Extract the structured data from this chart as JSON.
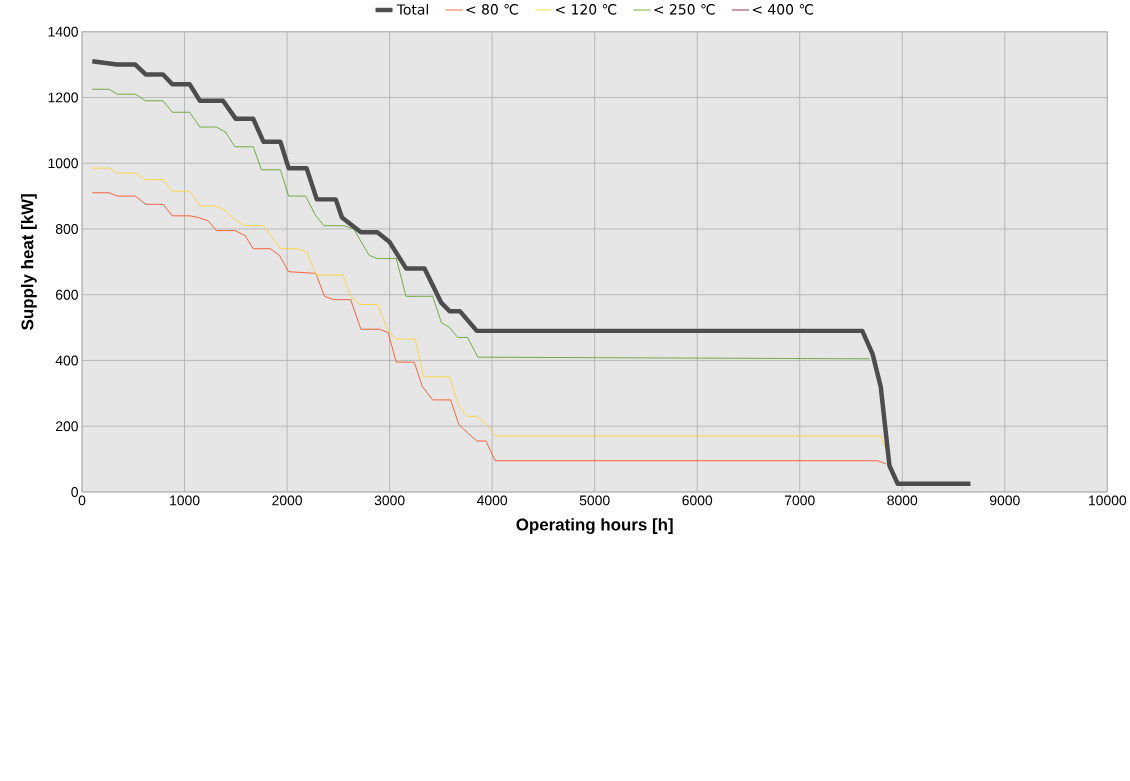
{
  "chart_data": {
    "type": "line",
    "xlabel": "Operating hours [h]",
    "ylabel": "Supply heat [kW]",
    "xlim": [
      0,
      10000
    ],
    "xticks": [
      0,
      1000,
      2000,
      3000,
      4000,
      5000,
      6000,
      7000,
      8000,
      9000,
      10000
    ],
    "ylim": [
      0,
      1400
    ],
    "yticks": [
      0,
      200,
      400,
      600,
      800,
      1000,
      1200,
      1400
    ],
    "grid": true,
    "legend": "top",
    "marker": "none",
    "line_style": "solid",
    "series": [
      {
        "name": "Total",
        "color": "#4d4d4d",
        "x": [
          100,
          340,
          520,
          620,
          790,
          880,
          1050,
          1150,
          1375,
          1500,
          1670,
          1770,
          1935,
          2015,
          2190,
          2290,
          2475,
          2535,
          2720,
          2880,
          3000,
          3160,
          3340,
          3505,
          3585,
          3685,
          3850,
          7610,
          7710,
          7790,
          7875,
          7955,
          8665
        ],
        "values": [
          1310,
          1300,
          1300,
          1270,
          1270,
          1240,
          1240,
          1190,
          1190,
          1135,
          1135,
          1065,
          1065,
          985,
          985,
          890,
          890,
          835,
          790,
          790,
          760,
          680,
          680,
          575,
          550,
          550,
          490,
          490,
          420,
          320,
          80,
          25,
          25
        ]
      },
      {
        "name": "<  80 ℃",
        "color": "#ff420e",
        "x": [
          100,
          265,
          345,
          520,
          620,
          790,
          880,
          1050,
          1130,
          1230,
          1310,
          1490,
          1590,
          1670,
          1835,
          1925,
          2015,
          2280,
          2365,
          2455,
          2620,
          2720,
          2900,
          2985,
          3065,
          3240,
          3320,
          3420,
          3595,
          3675,
          3760,
          3850,
          3940,
          4030,
          7760,
          7840
        ],
        "values": [
          910,
          910,
          900,
          900,
          875,
          875,
          840,
          840,
          835,
          825,
          795,
          795,
          780,
          740,
          740,
          720,
          670,
          665,
          595,
          585,
          585,
          495,
          495,
          485,
          395,
          395,
          320,
          280,
          280,
          205,
          180,
          155,
          155,
          95,
          95,
          85
        ]
      },
      {
        "name": "< 120 ℃",
        "color": "#ffd320",
        "x": [
          100,
          265,
          345,
          520,
          620,
          790,
          880,
          1050,
          1150,
          1310,
          1400,
          1500,
          1590,
          1770,
          1935,
          2095,
          2190,
          2280,
          2545,
          2620,
          2710,
          2885,
          2975,
          3065,
          3250,
          3330,
          3585,
          3675,
          3760,
          3850,
          3950,
          4030,
          7790,
          7840
        ],
        "values": [
          985,
          985,
          970,
          970,
          950,
          950,
          915,
          915,
          870,
          870,
          855,
          825,
          810,
          810,
          740,
          740,
          730,
          660,
          660,
          595,
          570,
          570,
          495,
          465,
          465,
          350,
          350,
          260,
          230,
          230,
          205,
          170,
          170,
          130
        ]
      },
      {
        "name": "< 250 ℃",
        "color": "#579d1c",
        "x": [
          100,
          265,
          345,
          520,
          620,
          790,
          880,
          1050,
          1150,
          1310,
          1400,
          1490,
          1670,
          1750,
          1935,
          2015,
          2180,
          2280,
          2360,
          2555,
          2650,
          2800,
          2880,
          3065,
          3160,
          3420,
          3505,
          3585,
          3665,
          3760,
          3860,
          7680
        ],
        "values": [
          1225,
          1225,
          1210,
          1210,
          1190,
          1190,
          1155,
          1155,
          1110,
          1110,
          1095,
          1050,
          1050,
          980,
          980,
          900,
          900,
          840,
          810,
          810,
          800,
          720,
          710,
          710,
          595,
          595,
          515,
          500,
          470,
          470,
          410,
          405
        ]
      },
      {
        "name": "< 400 ℃",
        "color": "#7e0021",
        "values": [
          null
        ]
      }
    ]
  }
}
